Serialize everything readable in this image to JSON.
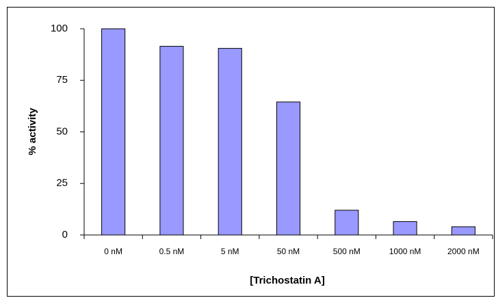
{
  "chart_data": {
    "type": "bar",
    "categories": [
      "0 nM",
      "0.5 nM",
      "5 nM",
      "50 nM",
      "500 nM",
      "1000 nM",
      "2000 nM"
    ],
    "values": [
      100,
      91.5,
      90.5,
      64.5,
      12,
      6.5,
      4
    ],
    "color": "#9999ff",
    "x_label": "[Trichostatin A]",
    "y_label": "% activity",
    "ylim": [
      0,
      100
    ],
    "yticks": [
      0,
      25,
      50,
      75,
      100
    ],
    "grid": false
  }
}
